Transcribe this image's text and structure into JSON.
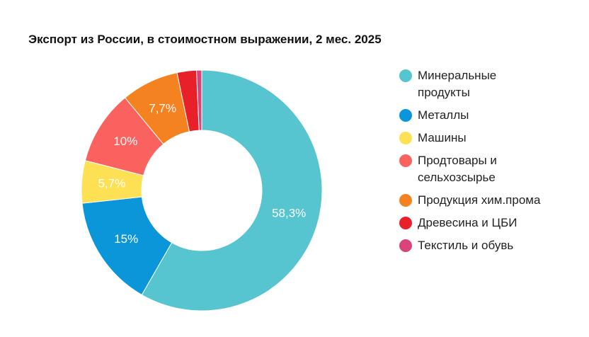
{
  "chart_data": {
    "type": "pie",
    "title": "Экспорт из России, в стоимостном выражении, 2 мес. 2025",
    "categories": [
      "Минеральные продукты",
      "Металлы",
      "Машины",
      "Продтовары и сельхозсырье",
      "Продукция хим.прома",
      "Древесина и ЦБИ",
      "Текстиль и обувь"
    ],
    "values": [
      58.3,
      15,
      5.7,
      10,
      7.7,
      2.6,
      0.7
    ],
    "value_labels": [
      "58,3%",
      "15%",
      "5,7%",
      "10%",
      "7,7%",
      null,
      null
    ],
    "colors": [
      "#56c5d0",
      "#0a96d8",
      "#fde053",
      "#f9625f",
      "#f58220",
      "#e8202a",
      "#d9457a"
    ],
    "legend": "right"
  }
}
